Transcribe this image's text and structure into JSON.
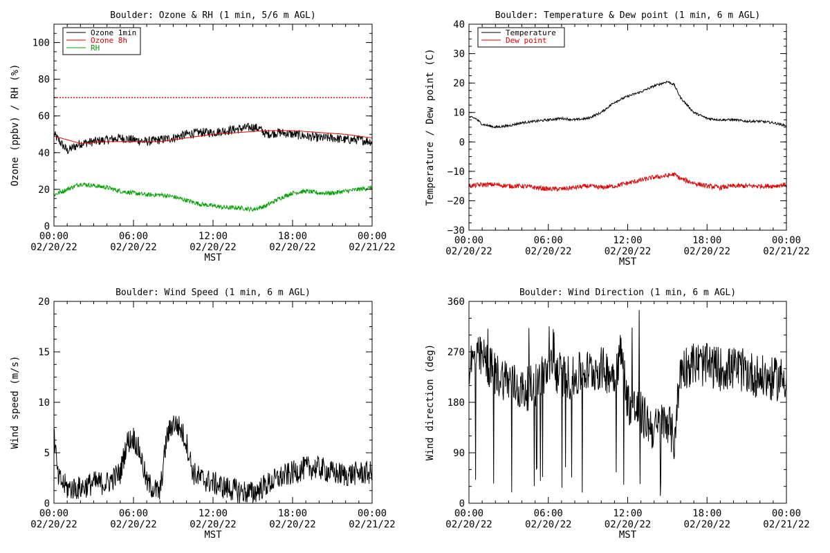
{
  "chart_data": [
    {
      "type": "line",
      "title": "Boulder: Ozone & RH (1 min, 5/6 m AGL)",
      "xlabel": "MST",
      "ylabel": "Ozone (ppbv) / RH (%)",
      "xlim": [
        "2022-02-20 00:00",
        "2022-02-21 00:00"
      ],
      "ylim": [
        0,
        110
      ],
      "x_ticks": [
        {
          "time": "00:00",
          "date": "02/20/22"
        },
        {
          "time": "06:00",
          "date": "02/20/22"
        },
        {
          "time": "12:00",
          "date": "02/20/22"
        },
        {
          "time": "18:00",
          "date": "02/20/22"
        },
        {
          "time": "00:00",
          "date": "02/21/22"
        }
      ],
      "y_ticks": [
        "0",
        "20",
        "40",
        "60",
        "80",
        "100"
      ],
      "legend": "top-left",
      "reference_line": {
        "y": 70,
        "color": "#e00000",
        "style": "dotted"
      },
      "series": [
        {
          "name": "Ozone 1min",
          "color": "#000000",
          "noise": 2.5,
          "x_hours": [
            0,
            1,
            2,
            3,
            4,
            5,
            6,
            7,
            8,
            9,
            10,
            11,
            12,
            13,
            14,
            15,
            15.5,
            16,
            17,
            18,
            19,
            20,
            21,
            22,
            23,
            24
          ],
          "y": [
            50,
            41,
            45,
            46,
            47,
            48,
            47,
            46,
            47,
            48,
            50,
            51,
            51,
            52,
            53,
            54,
            53,
            50,
            51,
            50,
            49,
            48,
            48,
            47,
            47,
            46
          ]
        },
        {
          "name": "Ozone 8h",
          "color": "#e00000",
          "noise": 0,
          "x_hours": [
            0,
            2,
            4,
            6,
            8,
            10,
            12,
            14,
            16,
            18,
            20,
            22,
            24
          ],
          "y": [
            49,
            45,
            46,
            46,
            46,
            48,
            50,
            51,
            52,
            52,
            51,
            50,
            48
          ]
        },
        {
          "name": "RH",
          "color": "#00a000",
          "noise": 1.2,
          "x_hours": [
            0,
            1,
            2,
            3,
            4,
            5,
            6,
            7,
            8,
            9,
            10,
            11,
            12,
            13,
            14,
            15,
            16,
            17,
            18,
            19,
            20,
            21,
            22,
            23,
            24
          ],
          "y": [
            17,
            20,
            23,
            22,
            21,
            19,
            18,
            17,
            17,
            16,
            14,
            12,
            11,
            10,
            10,
            9,
            11,
            15,
            18,
            19,
            18,
            18,
            19,
            20,
            21
          ]
        }
      ]
    },
    {
      "type": "line",
      "title": "Boulder: Temperature & Dew point (1 min, 6 m AGL)",
      "xlabel": "MST",
      "ylabel": "Temperature / Dew point (C)",
      "xlim": [
        "2022-02-20 00:00",
        "2022-02-21 00:00"
      ],
      "ylim": [
        -30,
        40
      ],
      "x_ticks": [
        {
          "time": "00:00",
          "date": "02/20/22"
        },
        {
          "time": "06:00",
          "date": "02/20/22"
        },
        {
          "time": "12:00",
          "date": "02/20/22"
        },
        {
          "time": "18:00",
          "date": "02/20/22"
        },
        {
          "time": "00:00",
          "date": "02/21/22"
        }
      ],
      "y_ticks": [
        "−30",
        "−20",
        "−10",
        "0",
        "10",
        "20",
        "30",
        "40"
      ],
      "legend": "top-left",
      "series": [
        {
          "name": "Temperature",
          "color": "#000000",
          "noise": 0.4,
          "x_hours": [
            0,
            0.5,
            1,
            2,
            3,
            4,
            5,
            6,
            7,
            8,
            9,
            10,
            11,
            12,
            13,
            14,
            15,
            15.5,
            16,
            17,
            18,
            19,
            20,
            21,
            22,
            23,
            24
          ],
          "y": [
            8.5,
            8,
            6,
            5,
            5.5,
            6.5,
            7,
            7.5,
            8,
            7.5,
            8,
            10,
            13.5,
            15.5,
            17,
            19,
            20.5,
            19.5,
            15,
            10,
            8,
            7.5,
            7.5,
            7,
            7,
            6.5,
            5.5
          ]
        },
        {
          "name": "Dew point",
          "color": "#e00000",
          "noise": 0.8,
          "x_hours": [
            0,
            1,
            2,
            3,
            4,
            5,
            6,
            7,
            8,
            9,
            10,
            11,
            12,
            13,
            14,
            15,
            15.5,
            16,
            17,
            18,
            19,
            20,
            21,
            22,
            23,
            24
          ],
          "y": [
            -15,
            -14.5,
            -14.5,
            -15,
            -15,
            -15.5,
            -16,
            -16,
            -15.5,
            -15,
            -15.5,
            -15,
            -14,
            -13,
            -12,
            -11.5,
            -11,
            -12.5,
            -14,
            -15,
            -15.5,
            -15,
            -15,
            -15,
            -15,
            -14.5
          ]
        }
      ]
    },
    {
      "type": "line",
      "title": "Boulder: Wind Speed (1 min, 6 m AGL)",
      "xlabel": "MST",
      "ylabel": "Wind speed (m/s)",
      "xlim": [
        "2022-02-20 00:00",
        "2022-02-21 00:00"
      ],
      "ylim": [
        0,
        20
      ],
      "x_ticks": [
        {
          "time": "00:00",
          "date": "02/20/22"
        },
        {
          "time": "06:00",
          "date": "02/20/22"
        },
        {
          "time": "12:00",
          "date": "02/20/22"
        },
        {
          "time": "18:00",
          "date": "02/20/22"
        },
        {
          "time": "00:00",
          "date": "02/21/22"
        }
      ],
      "y_ticks": [
        "0",
        "5",
        "10",
        "15",
        "20"
      ],
      "series": [
        {
          "name": "",
          "color": "#000000",
          "noise": 1.2,
          "x_hours": [
            0,
            0.3,
            1,
            2,
            3,
            4,
            5,
            5.5,
            6,
            6.5,
            7,
            8,
            8.5,
            9,
            9.5,
            10,
            10.5,
            11,
            12,
            13,
            14,
            15,
            16,
            17,
            18,
            19,
            20,
            21,
            22,
            23,
            24
          ],
          "y": [
            7,
            2.5,
            1.5,
            1.5,
            2,
            2,
            3,
            6,
            6.5,
            5,
            2,
            1,
            6.5,
            8,
            7.5,
            6,
            3,
            2.5,
            2,
            1.5,
            1.2,
            1,
            1.8,
            2.5,
            3,
            3.5,
            3.5,
            3,
            2.8,
            3,
            3
          ]
        }
      ]
    },
    {
      "type": "line",
      "title": "Boulder: Wind Direction (1 min, 6 m AGL)",
      "xlabel": "MST",
      "ylabel": "Wind direction (deg)",
      "xlim": [
        "2022-02-20 00:00",
        "2022-02-21 00:00"
      ],
      "ylim": [
        0,
        360
      ],
      "x_ticks": [
        {
          "time": "00:00",
          "date": "02/20/22"
        },
        {
          "time": "06:00",
          "date": "02/20/22"
        },
        {
          "time": "12:00",
          "date": "02/20/22"
        },
        {
          "time": "18:00",
          "date": "02/20/22"
        },
        {
          "time": "00:00",
          "date": "02/21/22"
        }
      ],
      "y_ticks": [
        "0",
        "90",
        "180",
        "270",
        "360"
      ],
      "series": [
        {
          "name": "",
          "color": "#000000",
          "noise": 40,
          "x_hours": [
            0,
            1,
            2,
            3,
            4,
            5,
            6,
            7,
            8,
            8.5,
            9,
            10,
            11,
            11.5,
            12,
            13,
            14,
            15,
            15.5,
            16,
            17,
            18,
            19,
            20,
            21,
            22,
            23,
            24
          ],
          "y": [
            250,
            260,
            230,
            220,
            200,
            210,
            240,
            230,
            220,
            235,
            235,
            240,
            230,
            270,
            180,
            160,
            130,
            150,
            110,
            240,
            250,
            245,
            240,
            240,
            235,
            225,
            220,
            225
          ]
        }
      ]
    }
  ]
}
